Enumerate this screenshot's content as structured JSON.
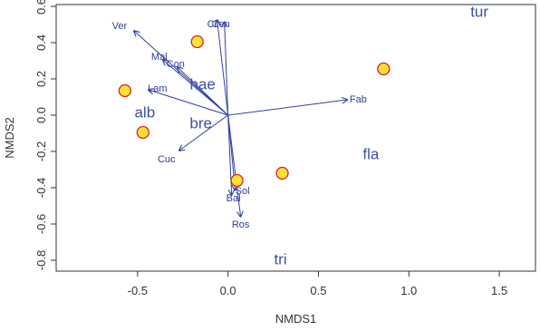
{
  "chart_data": {
    "type": "scatter",
    "xlabel": "NMDS1",
    "ylabel": "NMDS2",
    "xlim": [
      -0.95,
      1.7
    ],
    "ylim": [
      -0.86,
      0.61
    ],
    "x_ticks": [
      -0.5,
      0.0,
      0.5,
      1.0,
      1.5
    ],
    "x_tick_labels": [
      "-0.5",
      "0.0",
      "0.5",
      "1.0",
      "1.5"
    ],
    "y_ticks": [
      -0.8,
      -0.6,
      -0.4,
      -0.2,
      0.0,
      0.2,
      0.4,
      0.6
    ],
    "y_tick_labels": [
      "-0.8",
      "-0.6",
      "-0.4",
      "-0.2",
      "0.0",
      "0.2",
      "0.4",
      "0.6"
    ],
    "grid": false,
    "points": [
      {
        "x": -0.57,
        "y": 0.135
      },
      {
        "x": -0.47,
        "y": -0.095
      },
      {
        "x": -0.17,
        "y": 0.405
      },
      {
        "x": 0.05,
        "y": -0.36
      },
      {
        "x": 0.3,
        "y": -0.32
      },
      {
        "x": 0.86,
        "y": 0.255
      }
    ],
    "vectors": [
      {
        "label": "Ver",
        "x": -0.52,
        "y": 0.465
      },
      {
        "label": "Mal",
        "x": -0.36,
        "y": 0.305
      },
      {
        "label": "Con",
        "x": -0.28,
        "y": 0.265
      },
      {
        "label": "Lam",
        "x": -0.44,
        "y": 0.14
      },
      {
        "label": "Cuc",
        "x": -0.27,
        "y": -0.195
      },
      {
        "label": "Fab",
        "x": 0.66,
        "y": 0.085
      },
      {
        "label": "Cir",
        "x": -0.06,
        "y": 0.525
      },
      {
        "label": "Cen",
        "x": -0.02,
        "y": 0.515
      },
      {
        "label": "Sol",
        "x": 0.04,
        "y": -0.415
      },
      {
        "label": "Bal",
        "x": 0.02,
        "y": -0.44
      },
      {
        "label": "Ros",
        "x": 0.07,
        "y": -0.56
      }
    ],
    "vector_labels": [
      {
        "text": "Ver",
        "x": -0.6,
        "y": 0.49
      },
      {
        "text": "Mal",
        "x": -0.38,
        "y": 0.32
      },
      {
        "text": "Con",
        "x": -0.29,
        "y": 0.28
      },
      {
        "text": "Lam",
        "x": -0.39,
        "y": 0.145
      },
      {
        "text": "Cuc",
        "x": -0.34,
        "y": -0.245
      },
      {
        "text": "Fab",
        "x": 0.72,
        "y": 0.085
      },
      {
        "text": "Cir",
        "x": -0.08,
        "y": 0.5
      },
      {
        "text": "Cen",
        "x": -0.04,
        "y": 0.5
      },
      {
        "text": "Sol",
        "x": 0.08,
        "y": -0.42
      },
      {
        "text": "Bal",
        "x": 0.03,
        "y": -0.46
      },
      {
        "text": "Ros",
        "x": 0.07,
        "y": -0.605
      }
    ],
    "group_labels": [
      {
        "text": "tur",
        "x": 1.39,
        "y": 0.565
      },
      {
        "text": "hae",
        "x": -0.14,
        "y": 0.165
      },
      {
        "text": "alb",
        "x": -0.46,
        "y": 0.01
      },
      {
        "text": "bre",
        "x": -0.15,
        "y": -0.05
      },
      {
        "text": "fla",
        "x": 0.79,
        "y": -0.22
      },
      {
        "text": "tri",
        "x": 0.29,
        "y": -0.8
      }
    ],
    "colors": {
      "arrow": "#3040a0",
      "point_fill": "#ffe135",
      "point_stroke": "#d8202a",
      "label_text": "#3f4fa8",
      "axis": "#333333"
    }
  }
}
